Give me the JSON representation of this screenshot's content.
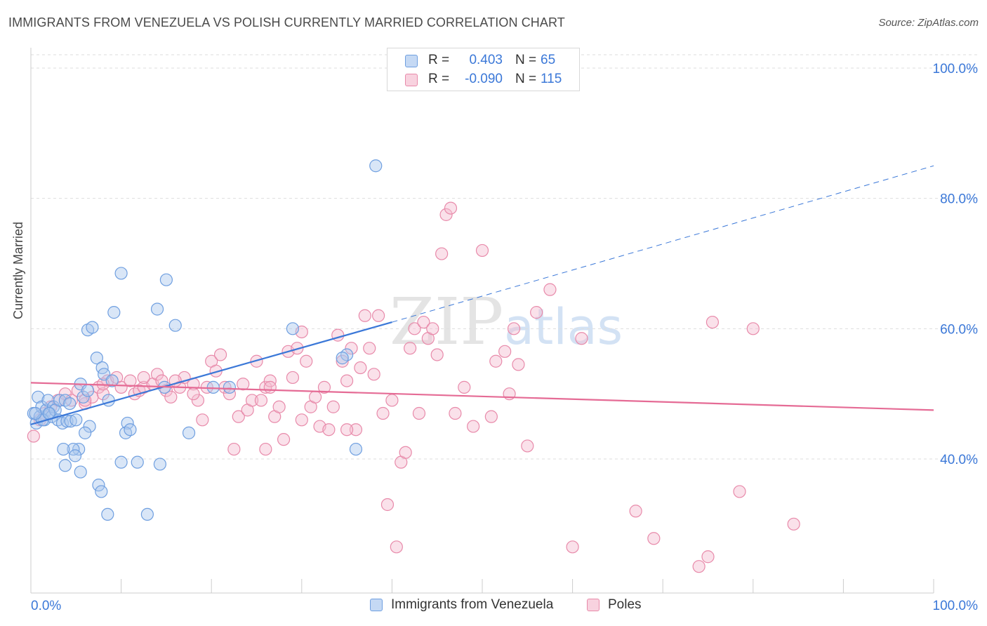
{
  "header": {
    "title": "IMMIGRANTS FROM VENEZUELA VS POLISH CURRENTLY MARRIED CORRELATION CHART",
    "source": "Source: ZipAtlas.com"
  },
  "legend_top": {
    "rows": [
      {
        "r_label": "R =",
        "r_value": "0.403",
        "n_label": "N =",
        "n_value": "65"
      },
      {
        "r_label": "R =",
        "r_value": "-0.090",
        "n_label": "N =",
        "n_value": "115"
      }
    ]
  },
  "watermark": {
    "zip": "ZIP",
    "atlas": "atlas"
  },
  "colors": {
    "blue_fill": "#aac8ee",
    "blue_stroke": "#6f9fe0",
    "blue_line": "#3b78d8",
    "pink_fill": "#f5bcd0",
    "pink_stroke": "#e88aaa",
    "pink_line": "#e56b95",
    "axis_value": "#3b78d8",
    "grid": "#dddddd"
  },
  "chart_data": {
    "type": "scatter",
    "title": "IMMIGRANTS FROM VENEZUELA VS POLISH CURRENTLY MARRIED CORRELATION CHART",
    "xlabel": "",
    "ylabel": "Currently Married",
    "xlim": [
      0,
      100
    ],
    "ylim": [
      21,
      102
    ],
    "x_tick_labels": [
      "0.0%",
      "100.0%"
    ],
    "y_ticks": [
      40,
      60,
      80,
      100
    ],
    "y_tick_labels": [
      "40.0%",
      "60.0%",
      "80.0%",
      "100.0%"
    ],
    "grid": true,
    "legend_position": "top-center",
    "series": [
      {
        "name": "Immigrants from Venezuela",
        "color": "#6f9fe0",
        "R": 0.403,
        "N": 65,
        "trend": {
          "x0": 0,
          "y0": 45.3,
          "x1": 40,
          "y1": 61.0,
          "dash_to_x": 100,
          "dash_to_y": 85
        },
        "points": [
          [
            0.3,
            47
          ],
          [
            0.6,
            45.5
          ],
          [
            0.8,
            49.5
          ],
          [
            1.0,
            46.5
          ],
          [
            1.2,
            48
          ],
          [
            1.5,
            46
          ],
          [
            1.7,
            47.5
          ],
          [
            1.9,
            49
          ],
          [
            2.1,
            47
          ],
          [
            2.3,
            46.5
          ],
          [
            2.5,
            48
          ],
          [
            2.7,
            47.5
          ],
          [
            3.0,
            46
          ],
          [
            3.2,
            49
          ],
          [
            3.5,
            45.5
          ],
          [
            3.8,
            49
          ],
          [
            4.0,
            45.8
          ],
          [
            4.4,
            45.8
          ],
          [
            5.0,
            46
          ],
          [
            5.5,
            51.5
          ],
          [
            5.8,
            49.5
          ],
          [
            6.3,
            50.5
          ],
          [
            6.5,
            45
          ],
          [
            6.0,
            44
          ],
          [
            5.3,
            41.5
          ],
          [
            4.7,
            41.5
          ],
          [
            4.9,
            40.5
          ],
          [
            3.6,
            41.5
          ],
          [
            3.8,
            39
          ],
          [
            5.5,
            38
          ],
          [
            7.3,
            55.5
          ],
          [
            7.9,
            54
          ],
          [
            8.1,
            53
          ],
          [
            8.6,
            49
          ],
          [
            9.0,
            52
          ],
          [
            6.3,
            59.8
          ],
          [
            6.8,
            60.2
          ],
          [
            9.2,
            62.5
          ],
          [
            10.0,
            68.5
          ],
          [
            10.7,
            45.5
          ],
          [
            10.5,
            44
          ],
          [
            11.0,
            44.5
          ],
          [
            10.0,
            39.5
          ],
          [
            11.8,
            39.5
          ],
          [
            7.5,
            36
          ],
          [
            7.8,
            35
          ],
          [
            8.5,
            31.5
          ],
          [
            12.9,
            31.5
          ],
          [
            14.3,
            39.2
          ],
          [
            14.8,
            51
          ],
          [
            14.0,
            63
          ],
          [
            15.0,
            67.5
          ],
          [
            16.0,
            60.5
          ],
          [
            17.5,
            44
          ],
          [
            20.2,
            51
          ],
          [
            22.0,
            51
          ],
          [
            29.0,
            60
          ],
          [
            35.0,
            56
          ],
          [
            34.5,
            55.5
          ],
          [
            36.0,
            41.5
          ],
          [
            38.2,
            85
          ],
          [
            1.3,
            46
          ],
          [
            2.0,
            47
          ],
          [
            4.3,
            48.5
          ],
          [
            0.5,
            47
          ]
        ]
      },
      {
        "name": "Poles",
        "color": "#e88aaa",
        "R": -0.09,
        "N": 115,
        "trend": {
          "x0": 0,
          "y0": 51.7,
          "x1": 100,
          "y1": 47.5
        },
        "points": [
          [
            0.3,
            43.5
          ],
          [
            1.0,
            46
          ],
          [
            1.5,
            47
          ],
          [
            2.2,
            48
          ],
          [
            3.0,
            49
          ],
          [
            3.8,
            50
          ],
          [
            4.5,
            49
          ],
          [
            5.2,
            50.5
          ],
          [
            6.0,
            48.5
          ],
          [
            6.8,
            49.5
          ],
          [
            7.5,
            51
          ],
          [
            8.0,
            50
          ],
          [
            8.5,
            52
          ],
          [
            9.5,
            52.5
          ],
          [
            10.0,
            51
          ],
          [
            11.0,
            52
          ],
          [
            11.5,
            50
          ],
          [
            12.0,
            50.5
          ],
          [
            12.5,
            51
          ],
          [
            13.5,
            51.5
          ],
          [
            14.0,
            53
          ],
          [
            14.5,
            52
          ],
          [
            15.0,
            50.5
          ],
          [
            15.5,
            49.5
          ],
          [
            16.5,
            51
          ],
          [
            17.0,
            52.5
          ],
          [
            18.0,
            51.5
          ],
          [
            18.5,
            49
          ],
          [
            19.0,
            46
          ],
          [
            19.5,
            51
          ],
          [
            20.0,
            55
          ],
          [
            20.5,
            53.5
          ],
          [
            21.0,
            56
          ],
          [
            21.5,
            51
          ],
          [
            22.0,
            50
          ],
          [
            23.0,
            46.5
          ],
          [
            23.5,
            51.5
          ],
          [
            24.0,
            47.5
          ],
          [
            24.5,
            49
          ],
          [
            25.0,
            55
          ],
          [
            25.5,
            49
          ],
          [
            26.0,
            51
          ],
          [
            26.5,
            52
          ],
          [
            27.0,
            46.5
          ],
          [
            27.5,
            48
          ],
          [
            28.0,
            43
          ],
          [
            28.5,
            56.5
          ],
          [
            29.0,
            52.5
          ],
          [
            29.5,
            57
          ],
          [
            30.0,
            59.5
          ],
          [
            30.5,
            55
          ],
          [
            31.0,
            48
          ],
          [
            31.5,
            49.5
          ],
          [
            32.0,
            45
          ],
          [
            32.5,
            51
          ],
          [
            33.0,
            44.5
          ],
          [
            33.5,
            48
          ],
          [
            34.0,
            59
          ],
          [
            34.5,
            55
          ],
          [
            35.0,
            52
          ],
          [
            35.5,
            57
          ],
          [
            36.0,
            44.5
          ],
          [
            36.5,
            54
          ],
          [
            37.0,
            62
          ],
          [
            37.5,
            57
          ],
          [
            38.0,
            53
          ],
          [
            38.5,
            62
          ],
          [
            39.0,
            47
          ],
          [
            39.5,
            33
          ],
          [
            40.0,
            49
          ],
          [
            40.5,
            26.5
          ],
          [
            41.0,
            39.5
          ],
          [
            41.5,
            41
          ],
          [
            42.0,
            57
          ],
          [
            42.5,
            60
          ],
          [
            43.0,
            47
          ],
          [
            43.5,
            61
          ],
          [
            44.0,
            58.5
          ],
          [
            44.5,
            60
          ],
          [
            45.0,
            56
          ],
          [
            45.5,
            71.5
          ],
          [
            46.0,
            77.5
          ],
          [
            46.5,
            78.5
          ],
          [
            47.0,
            47
          ],
          [
            48.0,
            51
          ],
          [
            49.0,
            45
          ],
          [
            50.0,
            72
          ],
          [
            51.0,
            46.5
          ],
          [
            51.5,
            55
          ],
          [
            52.5,
            56.5
          ],
          [
            53.0,
            50
          ],
          [
            53.5,
            60
          ],
          [
            54.0,
            54.5
          ],
          [
            55.0,
            42
          ],
          [
            56.0,
            62.5
          ],
          [
            57.5,
            66
          ],
          [
            60.0,
            26.5
          ],
          [
            61.0,
            58.5
          ],
          [
            67.0,
            32
          ],
          [
            69.0,
            27.8
          ],
          [
            74.0,
            23.5
          ],
          [
            75.0,
            25
          ],
          [
            75.5,
            61
          ],
          [
            78.5,
            35
          ],
          [
            80.0,
            60
          ],
          [
            84.5,
            30
          ],
          [
            12.5,
            52.5
          ],
          [
            8.0,
            51.5
          ],
          [
            18.0,
            50
          ],
          [
            22.5,
            41.5
          ],
          [
            26.0,
            41.5
          ],
          [
            35.0,
            44.5
          ],
          [
            30.0,
            46
          ],
          [
            26.5,
            51
          ],
          [
            16.0,
            52
          ],
          [
            6.0,
            49
          ]
        ]
      }
    ]
  },
  "x_axis": {
    "left_label": "0.0%",
    "right_label": "100.0%"
  },
  "y_axis": {
    "label": "Currently Married"
  },
  "legend_bottom": {
    "items": [
      {
        "label": "Immigrants from Venezuela"
      },
      {
        "label": "Poles"
      }
    ]
  }
}
